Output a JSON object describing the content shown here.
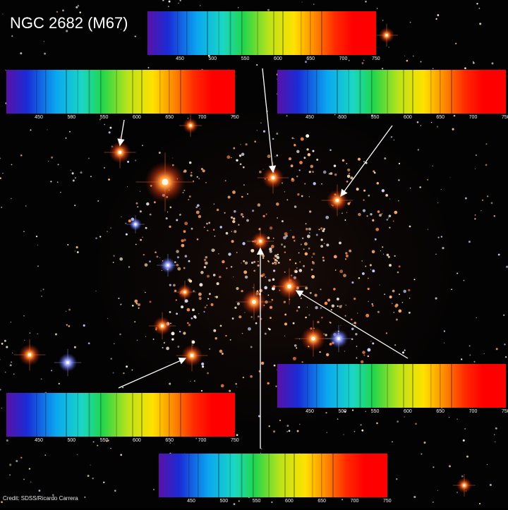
{
  "title": "NGC 2682 (M67)",
  "credit": "Credit: SDSS/Ricardo Carrera",
  "spectrum_ticks": [
    "450",
    "500",
    "550",
    "600",
    "650",
    "700",
    "750"
  ],
  "spectra": [
    {
      "id": "top-center",
      "target": "star-top-center"
    },
    {
      "id": "upper-left",
      "target": "star-upper-left"
    },
    {
      "id": "upper-right",
      "target": "star-upper-right"
    },
    {
      "id": "lower-right",
      "target": "star-center-right"
    },
    {
      "id": "lower-left",
      "target": "star-lower-left"
    },
    {
      "id": "bottom-center",
      "target": "star-core"
    }
  ],
  "colors": {
    "background": "#050404",
    "arrow": "#ffffff",
    "title_text": "#ffffff",
    "spectrum_stops": [
      "#5a11a6",
      "#1a2bd6",
      "#0aa8f0",
      "#1ad7c4",
      "#22d54c",
      "#b8e31a",
      "#ffe100",
      "#ff8a00",
      "#ff2a00",
      "#ff0000"
    ]
  }
}
